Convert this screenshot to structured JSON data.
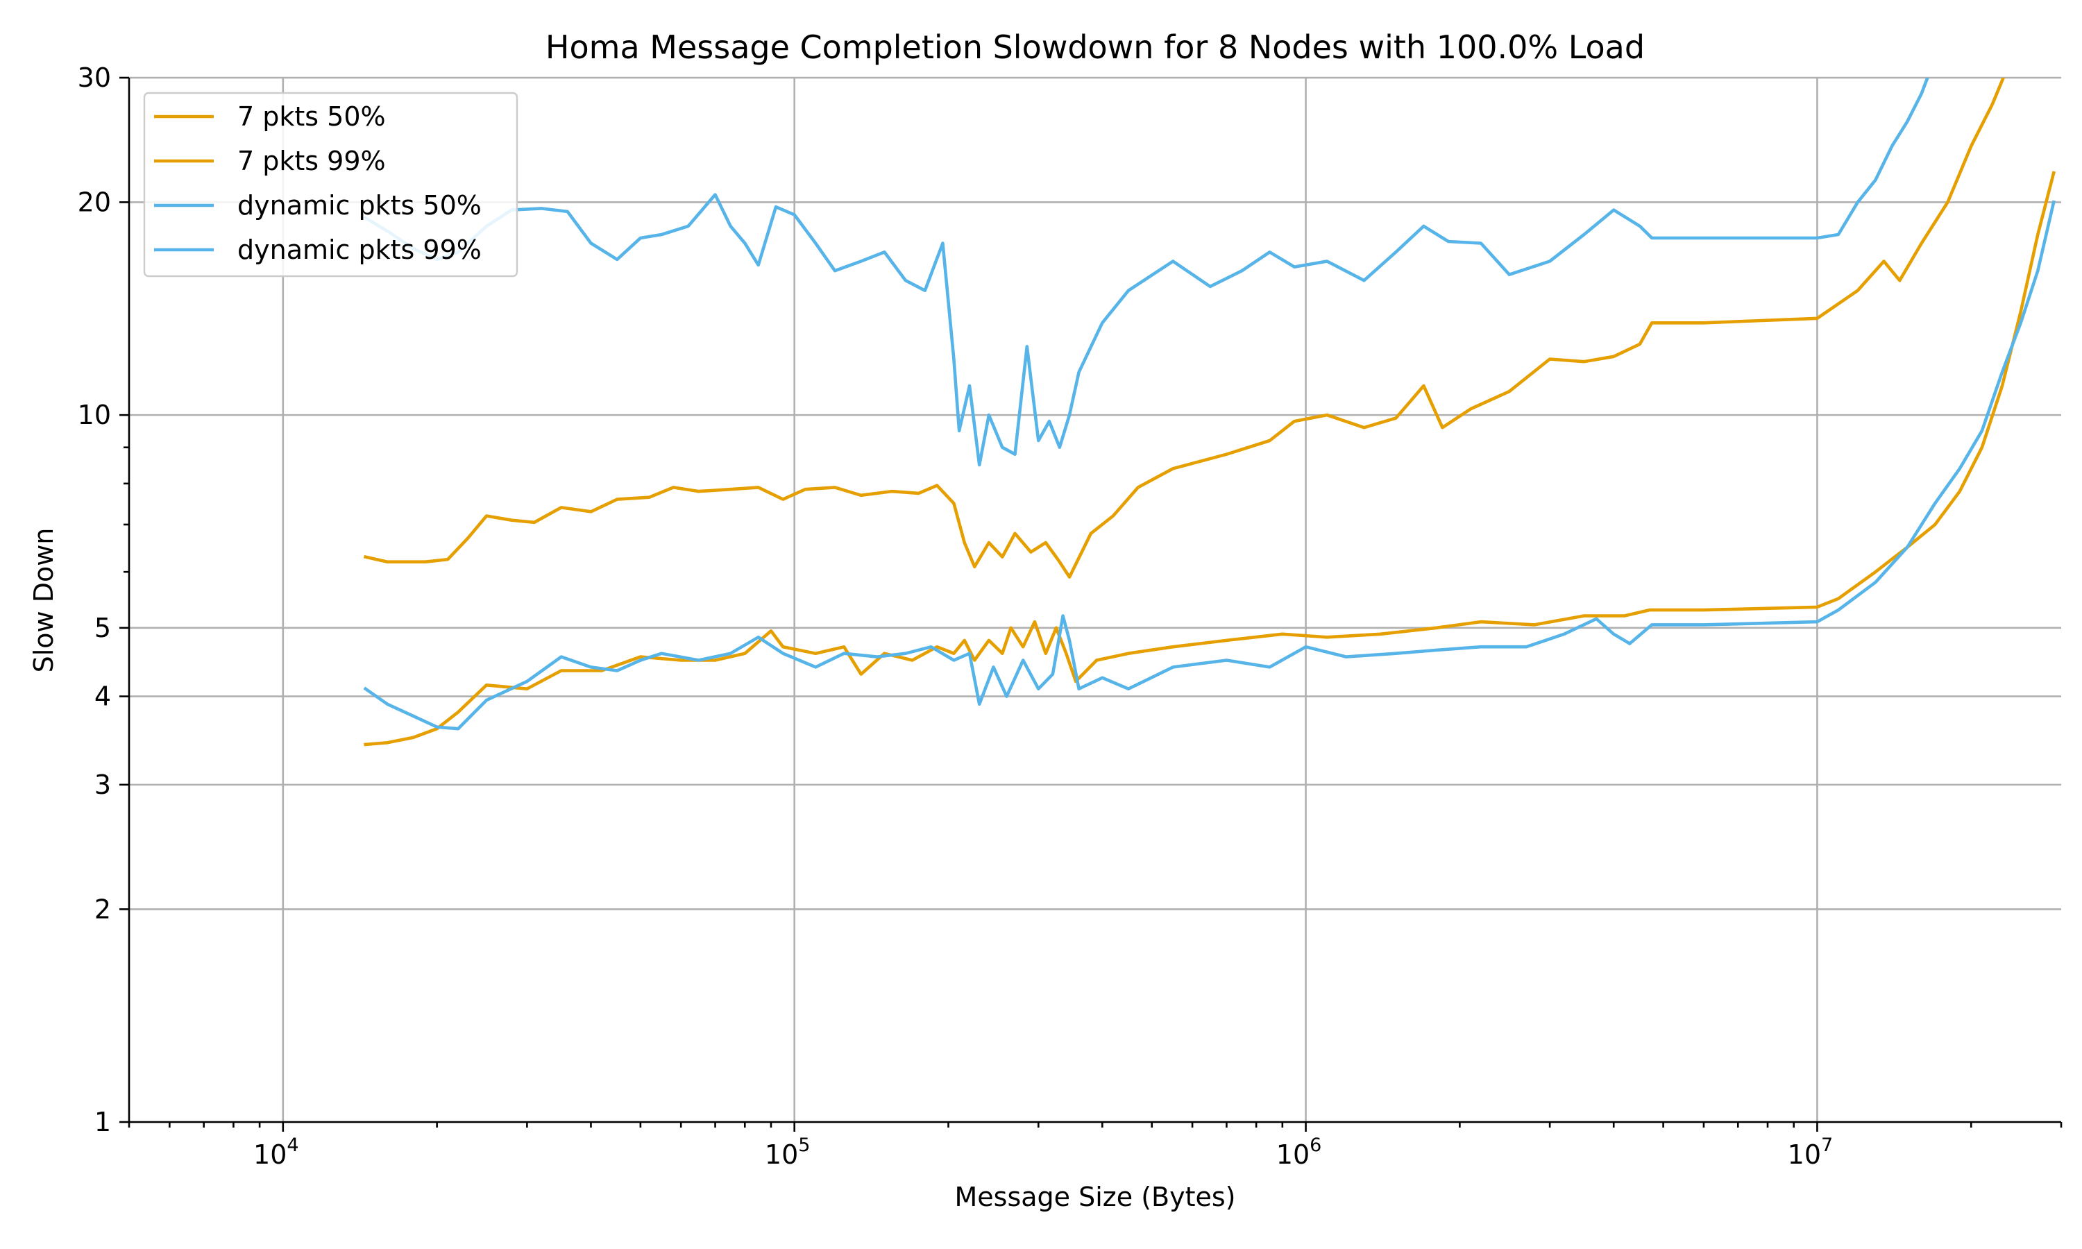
{
  "chart_data": {
    "type": "line",
    "title": "Homa Message Completion Slowdown for 8 Nodes with 100.0% Load",
    "xlabel": "Message Size (Bytes)",
    "ylabel": "Slow Down",
    "xscale": "log",
    "yscale": "log",
    "xlim": [
      5000,
      30000000
    ],
    "ylim": [
      1,
      30
    ],
    "grid": true,
    "legend_position": "top-left",
    "x_ticks": [
      {
        "base": "10",
        "exp": "4",
        "value": 10000
      },
      {
        "base": "10",
        "exp": "5",
        "value": 100000
      },
      {
        "base": "10",
        "exp": "6",
        "value": 1000000
      },
      {
        "base": "10",
        "exp": "7",
        "value": 10000000
      }
    ],
    "y_ticks": [
      {
        "label": "1",
        "value": 1
      },
      {
        "label": "2",
        "value": 2
      },
      {
        "label": "3",
        "value": 3
      },
      {
        "label": "4",
        "value": 4
      },
      {
        "label": "5",
        "value": 5
      },
      {
        "label": "10",
        "value": 10
      },
      {
        "label": "20",
        "value": 20
      },
      {
        "label": "30",
        "value": 30
      }
    ],
    "series": [
      {
        "name": "7 pkts 50%",
        "color": "#E69F00",
        "points": [
          [
            14500,
            3.42
          ],
          [
            16000,
            3.44
          ],
          [
            18000,
            3.5
          ],
          [
            20000,
            3.6
          ],
          [
            22000,
            3.8
          ],
          [
            25000,
            4.15
          ],
          [
            30000,
            4.1
          ],
          [
            35000,
            4.35
          ],
          [
            42000,
            4.35
          ],
          [
            50000,
            4.55
          ],
          [
            60000,
            4.5
          ],
          [
            70000,
            4.5
          ],
          [
            80000,
            4.6
          ],
          [
            90000,
            4.95
          ],
          [
            95000,
            4.7
          ],
          [
            110000,
            4.6
          ],
          [
            125000,
            4.7
          ],
          [
            135000,
            4.3
          ],
          [
            150000,
            4.6
          ],
          [
            170000,
            4.5
          ],
          [
            190000,
            4.7
          ],
          [
            205000,
            4.6
          ],
          [
            215000,
            4.8
          ],
          [
            225000,
            4.5
          ],
          [
            240000,
            4.8
          ],
          [
            255000,
            4.6
          ],
          [
            265000,
            5.0
          ],
          [
            280000,
            4.7
          ],
          [
            295000,
            5.1
          ],
          [
            310000,
            4.6
          ],
          [
            325000,
            5.0
          ],
          [
            340000,
            4.6
          ],
          [
            355000,
            4.2
          ],
          [
            390000,
            4.5
          ],
          [
            450000,
            4.6
          ],
          [
            550000,
            4.7
          ],
          [
            700000,
            4.8
          ],
          [
            900000,
            4.9
          ],
          [
            1100000,
            4.85
          ],
          [
            1400000,
            4.9
          ],
          [
            1800000,
            5.0
          ],
          [
            2200000,
            5.1
          ],
          [
            2800000,
            5.05
          ],
          [
            3500000,
            5.2
          ],
          [
            4200000,
            5.2
          ],
          [
            4700000,
            5.3
          ],
          [
            6000000,
            5.3
          ],
          [
            10000000,
            5.35
          ],
          [
            11000000,
            5.5
          ],
          [
            13000000,
            6.0
          ],
          [
            15000000,
            6.5
          ],
          [
            17000000,
            7.0
          ],
          [
            19000000,
            7.8
          ],
          [
            21000000,
            9.0
          ],
          [
            23000000,
            11.0
          ],
          [
            25000000,
            14.0
          ],
          [
            27000000,
            18.0
          ],
          [
            29000000,
            22.0
          ]
        ]
      },
      {
        "name": "7 pkts 99%",
        "color": "#E69F00",
        "points": [
          [
            14500,
            6.3
          ],
          [
            16000,
            6.2
          ],
          [
            19000,
            6.2
          ],
          [
            21000,
            6.25
          ],
          [
            23000,
            6.7
          ],
          [
            25000,
            7.2
          ],
          [
            28000,
            7.1
          ],
          [
            31000,
            7.05
          ],
          [
            35000,
            7.4
          ],
          [
            40000,
            7.3
          ],
          [
            45000,
            7.6
          ],
          [
            52000,
            7.65
          ],
          [
            58000,
            7.9
          ],
          [
            65000,
            7.8
          ],
          [
            75000,
            7.85
          ],
          [
            85000,
            7.9
          ],
          [
            95000,
            7.6
          ],
          [
            105000,
            7.85
          ],
          [
            120000,
            7.9
          ],
          [
            135000,
            7.7
          ],
          [
            155000,
            7.8
          ],
          [
            175000,
            7.75
          ],
          [
            190000,
            7.95
          ],
          [
            205000,
            7.5
          ],
          [
            215000,
            6.6
          ],
          [
            225000,
            6.1
          ],
          [
            240000,
            6.6
          ],
          [
            255000,
            6.3
          ],
          [
            270000,
            6.8
          ],
          [
            290000,
            6.4
          ],
          [
            310000,
            6.6
          ],
          [
            330000,
            6.2
          ],
          [
            345000,
            5.9
          ],
          [
            380000,
            6.8
          ],
          [
            420000,
            7.2
          ],
          [
            470000,
            7.9
          ],
          [
            550000,
            8.4
          ],
          [
            700000,
            8.8
          ],
          [
            850000,
            9.2
          ],
          [
            950000,
            9.8
          ],
          [
            1100000,
            10.0
          ],
          [
            1300000,
            9.6
          ],
          [
            1500000,
            9.9
          ],
          [
            1700000,
            11.0
          ],
          [
            1850000,
            9.6
          ],
          [
            2100000,
            10.2
          ],
          [
            2500000,
            10.8
          ],
          [
            3000000,
            12.0
          ],
          [
            3500000,
            11.9
          ],
          [
            4000000,
            12.1
          ],
          [
            4500000,
            12.6
          ],
          [
            4750000,
            13.5
          ],
          [
            6000000,
            13.5
          ],
          [
            10000000,
            13.7
          ],
          [
            12000000,
            15.0
          ],
          [
            13500000,
            16.5
          ],
          [
            14500000,
            15.5
          ],
          [
            16000000,
            17.5
          ],
          [
            18000000,
            20.0
          ],
          [
            20000000,
            24.0
          ],
          [
            22000000,
            27.5
          ],
          [
            24000000,
            32.0
          ]
        ]
      },
      {
        "name": "dynamic pkts 50%",
        "color": "#56B4E9",
        "points": [
          [
            14500,
            4.1
          ],
          [
            16000,
            3.9
          ],
          [
            18000,
            3.75
          ],
          [
            20000,
            3.62
          ],
          [
            22000,
            3.6
          ],
          [
            25000,
            3.95
          ],
          [
            30000,
            4.2
          ],
          [
            35000,
            4.55
          ],
          [
            40000,
            4.4
          ],
          [
            45000,
            4.35
          ],
          [
            50000,
            4.5
          ],
          [
            55000,
            4.6
          ],
          [
            65000,
            4.5
          ],
          [
            75000,
            4.6
          ],
          [
            85000,
            4.85
          ],
          [
            95000,
            4.6
          ],
          [
            110000,
            4.4
          ],
          [
            125000,
            4.6
          ],
          [
            145000,
            4.55
          ],
          [
            165000,
            4.6
          ],
          [
            185000,
            4.7
          ],
          [
            205000,
            4.5
          ],
          [
            220000,
            4.6
          ],
          [
            230000,
            3.9
          ],
          [
            245000,
            4.4
          ],
          [
            260000,
            4.0
          ],
          [
            280000,
            4.5
          ],
          [
            300000,
            4.1
          ],
          [
            320000,
            4.3
          ],
          [
            335000,
            5.2
          ],
          [
            345000,
            4.8
          ],
          [
            360000,
            4.1
          ],
          [
            400000,
            4.25
          ],
          [
            450000,
            4.1
          ],
          [
            550000,
            4.4
          ],
          [
            700000,
            4.5
          ],
          [
            850000,
            4.4
          ],
          [
            1000000,
            4.7
          ],
          [
            1200000,
            4.55
          ],
          [
            1500000,
            4.6
          ],
          [
            1800000,
            4.65
          ],
          [
            2200000,
            4.7
          ],
          [
            2700000,
            4.7
          ],
          [
            3200000,
            4.9
          ],
          [
            3700000,
            5.15
          ],
          [
            4000000,
            4.9
          ],
          [
            4300000,
            4.75
          ],
          [
            4750000,
            5.05
          ],
          [
            6000000,
            5.05
          ],
          [
            10000000,
            5.1
          ],
          [
            11000000,
            5.3
          ],
          [
            13000000,
            5.8
          ],
          [
            15000000,
            6.5
          ],
          [
            17000000,
            7.5
          ],
          [
            19000000,
            8.4
          ],
          [
            21000000,
            9.5
          ],
          [
            23000000,
            11.5
          ],
          [
            25000000,
            13.5
          ],
          [
            27000000,
            16.0
          ],
          [
            29000000,
            20.0
          ]
        ]
      },
      {
        "name": "dynamic pkts 99%",
        "color": "#56B4E9",
        "points": [
          [
            14500,
            19.0
          ],
          [
            16000,
            18.2
          ],
          [
            18000,
            17.2
          ],
          [
            20000,
            16.6
          ],
          [
            22000,
            17.0
          ],
          [
            25000,
            18.5
          ],
          [
            28000,
            19.5
          ],
          [
            32000,
            19.6
          ],
          [
            36000,
            19.4
          ],
          [
            40000,
            17.5
          ],
          [
            45000,
            16.6
          ],
          [
            50000,
            17.8
          ],
          [
            55000,
            18.0
          ],
          [
            62000,
            18.5
          ],
          [
            70000,
            20.5
          ],
          [
            75000,
            18.5
          ],
          [
            80000,
            17.5
          ],
          [
            85000,
            16.3
          ],
          [
            92000,
            19.7
          ],
          [
            100000,
            19.2
          ],
          [
            110000,
            17.5
          ],
          [
            120000,
            16.0
          ],
          [
            135000,
            16.5
          ],
          [
            150000,
            17.0
          ],
          [
            165000,
            15.5
          ],
          [
            180000,
            15.0
          ],
          [
            195000,
            17.5
          ],
          [
            205000,
            12.0
          ],
          [
            210000,
            9.5
          ],
          [
            220000,
            11.0
          ],
          [
            230000,
            8.5
          ],
          [
            240000,
            10.0
          ],
          [
            255000,
            9.0
          ],
          [
            270000,
            8.8
          ],
          [
            285000,
            12.5
          ],
          [
            300000,
            9.2
          ],
          [
            315000,
            9.8
          ],
          [
            330000,
            9.0
          ],
          [
            345000,
            10.0
          ],
          [
            360000,
            11.5
          ],
          [
            400000,
            13.5
          ],
          [
            450000,
            15.0
          ],
          [
            550000,
            16.5
          ],
          [
            650000,
            15.2
          ],
          [
            750000,
            16.0
          ],
          [
            850000,
            17.0
          ],
          [
            950000,
            16.2
          ],
          [
            1100000,
            16.5
          ],
          [
            1300000,
            15.5
          ],
          [
            1500000,
            17.0
          ],
          [
            1700000,
            18.5
          ],
          [
            1900000,
            17.6
          ],
          [
            2200000,
            17.5
          ],
          [
            2500000,
            15.8
          ],
          [
            3000000,
            16.5
          ],
          [
            3500000,
            18.0
          ],
          [
            4000000,
            19.5
          ],
          [
            4500000,
            18.5
          ],
          [
            4750000,
            17.8
          ],
          [
            6000000,
            17.8
          ],
          [
            10000000,
            17.8
          ],
          [
            11000000,
            18.0
          ],
          [
            12000000,
            20.0
          ],
          [
            13000000,
            21.5
          ],
          [
            14000000,
            24.0
          ],
          [
            15000000,
            26.0
          ],
          [
            16000000,
            28.5
          ],
          [
            17000000,
            32.0
          ]
        ]
      }
    ]
  }
}
